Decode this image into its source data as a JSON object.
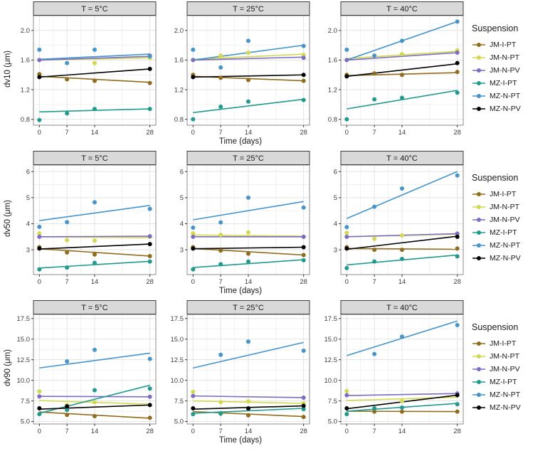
{
  "figure": {
    "legend": {
      "title": "Suspension",
      "entries": [
        "JM-I-PT",
        "JM-N-PT",
        "JM-N-PV",
        "MZ-I-PT",
        "MZ-N-PT",
        "MZ-N-PV"
      ]
    },
    "colors": {
      "JM-I-PT": "#8f6d1c",
      "JM-N-PT": "#d3d84f",
      "JM-N-PV": "#7c6cc4",
      "MZ-I-PT": "#1f9b8e",
      "MZ-N-PT": "#4594cc",
      "MZ-N-PV": "#000000"
    },
    "strip_bg": "#d9d9d9",
    "strip_border": "#3c3c3c",
    "panel_border": "#8c8c8c",
    "grid_major": "#e3e3e3",
    "grid_minor": "#f1f1f1",
    "facet_titles": [
      "T = 5°C",
      "T = 25°C",
      "T = 40°C"
    ],
    "x_label": "Time (days)"
  },
  "chart_data": [
    {
      "type": "scatter",
      "title": "dv10 by temperature",
      "ylabel": "dv10 (μm)",
      "xlabel": "Time (days)",
      "x": [
        0,
        7,
        14,
        28
      ],
      "xlim": [
        -1.5,
        29.5
      ],
      "ylim": [
        0.72,
        2.2
      ],
      "yticks": [
        0.8,
        1.2,
        1.6,
        2.0
      ],
      "ytick_labels": [
        "0.8",
        "1.2",
        "1.6",
        "2.0"
      ],
      "facets": [
        {
          "title": "T = 5°C",
          "series": {
            "JM-I-PT": {
              "points": [
                1.41,
                1.34,
                1.32,
                1.29
              ],
              "trend": [
                1.38,
                1.3
              ]
            },
            "JM-N-PT": {
              "points": [
                1.6,
                null,
                1.56,
                1.63
              ],
              "trend": [
                1.6,
                1.63
              ]
            },
            "JM-N-PV": {
              "points": [
                1.6,
                null,
                null,
                1.66
              ],
              "trend": [
                1.6,
                1.65
              ]
            },
            "MZ-I-PT": {
              "points": [
                0.79,
                0.88,
                0.94,
                0.94
              ],
              "trend": [
                0.9,
                0.94
              ]
            },
            "MZ-N-PT": {
              "points": [
                1.74,
                1.56,
                1.74,
                1.65
              ],
              "trend": [
                1.61,
                1.68
              ]
            },
            "MZ-N-PV": {
              "points": [
                1.37,
                null,
                null,
                1.48
              ],
              "trend": [
                1.37,
                1.48
              ]
            }
          }
        },
        {
          "title": "T = 25°C",
          "series": {
            "JM-I-PT": {
              "points": [
                1.4,
                1.36,
                1.33,
                1.32
              ],
              "trend": [
                1.38,
                1.32
              ]
            },
            "JM-N-PT": {
              "points": [
                1.6,
                1.66,
                1.7,
                1.67
              ],
              "trend": [
                1.61,
                1.68
              ]
            },
            "JM-N-PV": {
              "points": [
                1.6,
                null,
                null,
                1.63
              ],
              "trend": [
                1.6,
                1.64
              ]
            },
            "MZ-I-PT": {
              "points": [
                0.8,
                0.97,
                1.04,
                1.06
              ],
              "trend": [
                0.89,
                1.07
              ]
            },
            "MZ-N-PT": {
              "points": [
                1.74,
                1.5,
                1.86,
                1.79
              ],
              "trend": [
                1.6,
                1.8
              ]
            },
            "MZ-N-PV": {
              "points": [
                1.37,
                null,
                null,
                1.4
              ],
              "trend": [
                1.37,
                1.4
              ]
            }
          }
        },
        {
          "title": "T = 40°C",
          "series": {
            "JM-I-PT": {
              "points": [
                1.4,
                1.42,
                1.4,
                1.44
              ],
              "trend": [
                1.39,
                1.43
              ]
            },
            "JM-N-PT": {
              "points": [
                1.6,
                1.66,
                1.68,
                1.73
              ],
              "trend": [
                1.62,
                1.72
              ]
            },
            "JM-N-PV": {
              "points": [
                1.6,
                null,
                null,
                1.7
              ],
              "trend": [
                1.6,
                1.7
              ]
            },
            "MZ-I-PT": {
              "points": [
                0.8,
                1.07,
                1.09,
                1.16
              ],
              "trend": [
                0.94,
                1.19
              ]
            },
            "MZ-N-PT": {
              "points": [
                1.74,
                1.66,
                1.86,
                2.12
              ],
              "trend": [
                1.6,
                2.12
              ]
            },
            "MZ-N-PV": {
              "points": [
                1.38,
                null,
                null,
                1.56
              ],
              "trend": [
                1.38,
                1.55
              ]
            }
          }
        }
      ]
    },
    {
      "type": "scatter",
      "title": "dv50 by temperature",
      "ylabel": "dv50 (μm)",
      "xlabel": "Time (days)",
      "x": [
        0,
        7,
        14,
        28
      ],
      "xlim": [
        -1.5,
        29.5
      ],
      "ylim": [
        2.05,
        6.25
      ],
      "yticks": [
        3,
        4,
        5,
        6
      ],
      "ytick_labels": [
        "3",
        "4",
        "5",
        "6"
      ],
      "facets": [
        {
          "title": "T = 5°C",
          "series": {
            "JM-I-PT": {
              "points": [
                3.1,
                2.9,
                2.82,
                2.76
              ],
              "trend": [
                3.04,
                2.76
              ]
            },
            "JM-N-PT": {
              "points": [
                3.63,
                3.37,
                3.35,
                3.5
              ],
              "trend": [
                3.5,
                3.46
              ]
            },
            "JM-N-PV": {
              "points": [
                3.5,
                null,
                null,
                3.52
              ],
              "trend": [
                3.5,
                3.52
              ]
            },
            "MZ-I-PT": {
              "points": [
                2.25,
                2.32,
                2.5,
                2.55
              ],
              "trend": [
                2.3,
                2.56
              ]
            },
            "MZ-N-PT": {
              "points": [
                3.88,
                4.06,
                4.82,
                4.57
              ],
              "trend": [
                4.12,
                4.7
              ]
            },
            "MZ-N-PV": {
              "points": [
                3.05,
                null,
                null,
                3.22
              ],
              "trend": [
                3.03,
                3.22
              ]
            }
          }
        },
        {
          "title": "T = 25°C",
          "series": {
            "JM-I-PT": {
              "points": [
                3.1,
                2.97,
                2.85,
                2.8
              ],
              "trend": [
                3.05,
                2.8
              ]
            },
            "JM-N-PT": {
              "points": [
                3.63,
                3.57,
                3.67,
                3.5
              ],
              "trend": [
                3.57,
                3.52
              ]
            },
            "JM-N-PV": {
              "points": [
                3.5,
                null,
                null,
                3.5
              ],
              "trend": [
                3.5,
                3.5
              ]
            },
            "MZ-I-PT": {
              "points": [
                2.25,
                2.45,
                2.55,
                2.6
              ],
              "trend": [
                2.32,
                2.62
              ]
            },
            "MZ-N-PT": {
              "points": [
                3.85,
                4.05,
                5.0,
                4.62
              ],
              "trend": [
                4.15,
                4.85
              ]
            },
            "MZ-N-PV": {
              "points": [
                3.05,
                null,
                null,
                3.1
              ],
              "trend": [
                3.04,
                3.1
              ]
            }
          }
        },
        {
          "title": "T = 40°C",
          "series": {
            "JM-I-PT": {
              "points": [
                3.1,
                3.0,
                3.0,
                3.05
              ],
              "trend": [
                3.05,
                3.02
              ]
            },
            "JM-N-PT": {
              "points": [
                3.65,
                3.42,
                3.55,
                3.6
              ],
              "trend": [
                3.5,
                3.6
              ]
            },
            "JM-N-PV": {
              "points": [
                3.5,
                null,
                null,
                3.62
              ],
              "trend": [
                3.5,
                3.62
              ]
            },
            "MZ-I-PT": {
              "points": [
                2.3,
                2.55,
                2.65,
                2.75
              ],
              "trend": [
                2.42,
                2.8
              ]
            },
            "MZ-N-PT": {
              "points": [
                3.87,
                4.65,
                5.35,
                5.85
              ],
              "trend": [
                4.2,
                6.0
              ]
            },
            "MZ-N-PV": {
              "points": [
                3.05,
                null,
                null,
                3.5
              ],
              "trend": [
                3.02,
                3.52
              ]
            }
          }
        }
      ]
    },
    {
      "type": "scatter",
      "title": "dv90 by temperature",
      "ylabel": "dv90 (μm)",
      "xlabel": "Time (days)",
      "x": [
        0,
        7,
        14,
        28
      ],
      "xlim": [
        -1.5,
        29.5
      ],
      "ylim": [
        4.7,
        18.0
      ],
      "yticks": [
        5.0,
        7.5,
        10.0,
        12.5,
        15.0,
        17.5
      ],
      "ytick_labels": [
        "5.0",
        "7.5",
        "10.0",
        "12.5",
        "15.0",
        "17.5"
      ],
      "facets": [
        {
          "title": "T = 5°C",
          "series": {
            "JM-I-PT": {
              "points": [
                null,
                5.8,
                5.65,
                5.45
              ],
              "trend": [
                6.15,
                5.4
              ]
            },
            "JM-N-PT": {
              "points": [
                8.65,
                7.0,
                7.35,
                null
              ],
              "trend": [
                7.55,
                7.1
              ]
            },
            "JM-N-PV": {
              "points": [
                8.05,
                null,
                null,
                8.0
              ],
              "trend": [
                8.05,
                8.0
              ]
            },
            "MZ-I-PT": {
              "points": [
                5.9,
                6.4,
                8.8,
                9.0
              ],
              "trend": [
                6.0,
                9.4
              ]
            },
            "MZ-N-PT": {
              "points": [
                null,
                12.3,
                13.7,
                12.6
              ],
              "trend": [
                11.5,
                13.3
              ]
            },
            "MZ-N-PV": {
              "points": [
                6.6,
                6.85,
                null,
                7.0
              ],
              "trend": [
                6.5,
                7.0
              ]
            }
          }
        },
        {
          "title": "T = 25°C",
          "series": {
            "JM-I-PT": {
              "points": [
                null,
                5.95,
                5.75,
                5.55
              ],
              "trend": [
                6.2,
                5.6
              ]
            },
            "JM-N-PT": {
              "points": [
                8.6,
                7.35,
                7.45,
                7.2
              ],
              "trend": [
                7.5,
                7.2
              ]
            },
            "JM-N-PV": {
              "points": [
                8.1,
                null,
                null,
                7.9
              ],
              "trend": [
                8.1,
                7.9
              ]
            },
            "MZ-I-PT": {
              "points": [
                5.9,
                6.0,
                6.55,
                6.5
              ],
              "trend": [
                6.0,
                6.6
              ]
            },
            "MZ-N-PT": {
              "points": [
                null,
                13.1,
                14.7,
                13.6
              ],
              "trend": [
                11.5,
                14.6
              ]
            },
            "MZ-N-PV": {
              "points": [
                6.6,
                null,
                6.6,
                6.9
              ],
              "trend": [
                6.5,
                6.9
              ]
            }
          }
        },
        {
          "title": "T = 40°C",
          "series": {
            "JM-I-PT": {
              "points": [
                null,
                6.2,
                6.2,
                6.2
              ],
              "trend": [
                6.25,
                6.2
              ]
            },
            "JM-N-PT": {
              "points": [
                8.7,
                null,
                7.45,
                null
              ],
              "trend": [
                7.55,
                7.95
              ]
            },
            "JM-N-PV": {
              "points": [
                8.2,
                null,
                null,
                8.4
              ],
              "trend": [
                8.15,
                8.4
              ]
            },
            "MZ-I-PT": {
              "points": [
                5.9,
                6.6,
                6.7,
                7.1
              ],
              "trend": [
                6.25,
                7.2
              ]
            },
            "MZ-N-PT": {
              "points": [
                null,
                13.2,
                15.3,
                16.7
              ],
              "trend": [
                13.0,
                17.2
              ]
            },
            "MZ-N-PV": {
              "points": [
                6.6,
                null,
                null,
                8.2
              ],
              "trend": [
                6.55,
                8.2
              ]
            }
          }
        }
      ]
    }
  ]
}
